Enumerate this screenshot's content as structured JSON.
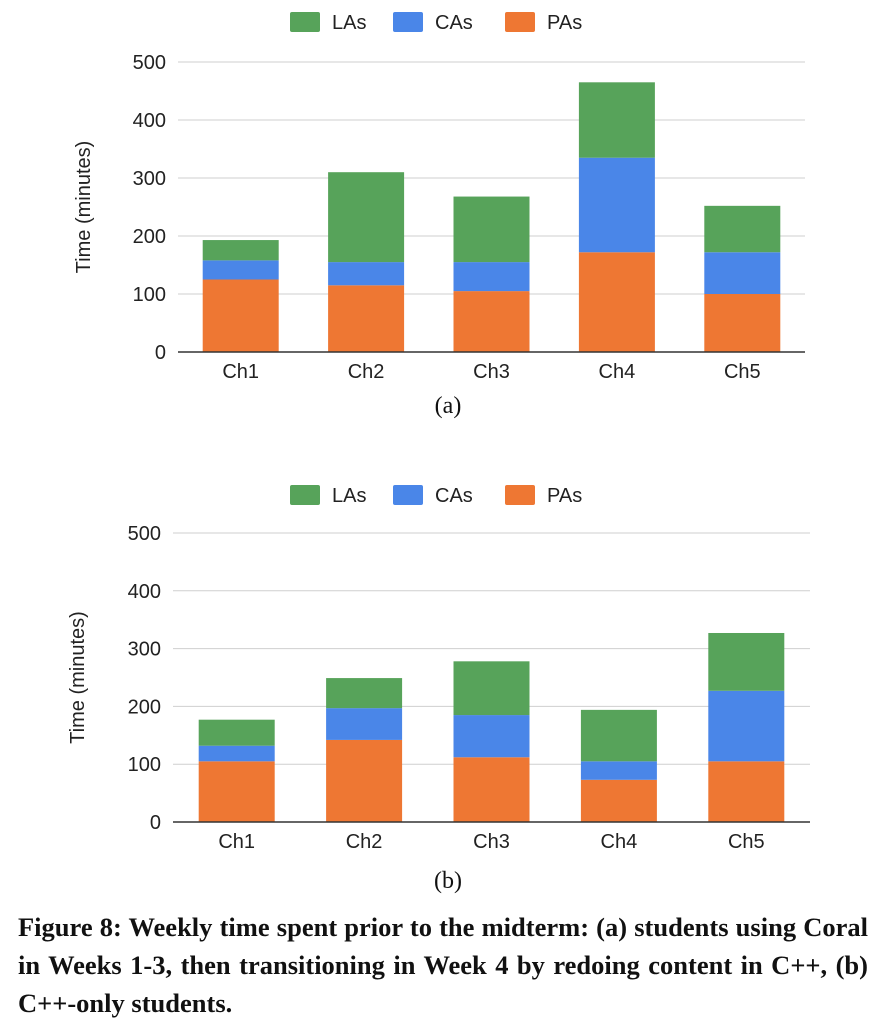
{
  "chart_data": [
    {
      "type": "bar",
      "stacked": true,
      "sublabel": "(a)",
      "categories": [
        "Ch1",
        "Ch2",
        "Ch3",
        "Ch4",
        "Ch5"
      ],
      "series": [
        {
          "name": "PAs",
          "color": "#ee7733",
          "values": [
            125,
            115,
            105,
            172,
            100
          ]
        },
        {
          "name": "CAs",
          "color": "#4a86e8",
          "values": [
            33,
            40,
            50,
            163,
            72
          ]
        },
        {
          "name": "LAs",
          "color": "#57a35a",
          "values": [
            35,
            155,
            113,
            130,
            80
          ]
        }
      ],
      "legend_order": [
        "LAs",
        "CAs",
        "PAs"
      ],
      "legend_position": "top",
      "ylabel": "Time (minutes)",
      "ylim": [
        0,
        500
      ],
      "yticks": [
        0,
        100,
        200,
        300,
        400,
        500
      ],
      "grid": true
    },
    {
      "type": "bar",
      "stacked": true,
      "sublabel": "(b)",
      "categories": [
        "Ch1",
        "Ch2",
        "Ch3",
        "Ch4",
        "Ch5"
      ],
      "series": [
        {
          "name": "PAs",
          "color": "#ee7733",
          "values": [
            105,
            142,
            112,
            73,
            105
          ]
        },
        {
          "name": "CAs",
          "color": "#4a86e8",
          "values": [
            27,
            55,
            73,
            32,
            122
          ]
        },
        {
          "name": "LAs",
          "color": "#57a35a",
          "values": [
            45,
            52,
            93,
            89,
            100
          ]
        }
      ],
      "legend_order": [
        "LAs",
        "CAs",
        "PAs"
      ],
      "legend_position": "top",
      "ylabel": "Time (minutes)",
      "ylim": [
        0,
        500
      ],
      "yticks": [
        0,
        100,
        200,
        300,
        400,
        500
      ],
      "grid": true
    }
  ],
  "caption": "Figure 8: Weekly time spent prior to the midterm: (a) students using Coral in Weeks 1-3, then transitioning in Week 4 by redoing content in C++, (b) C++-only students."
}
